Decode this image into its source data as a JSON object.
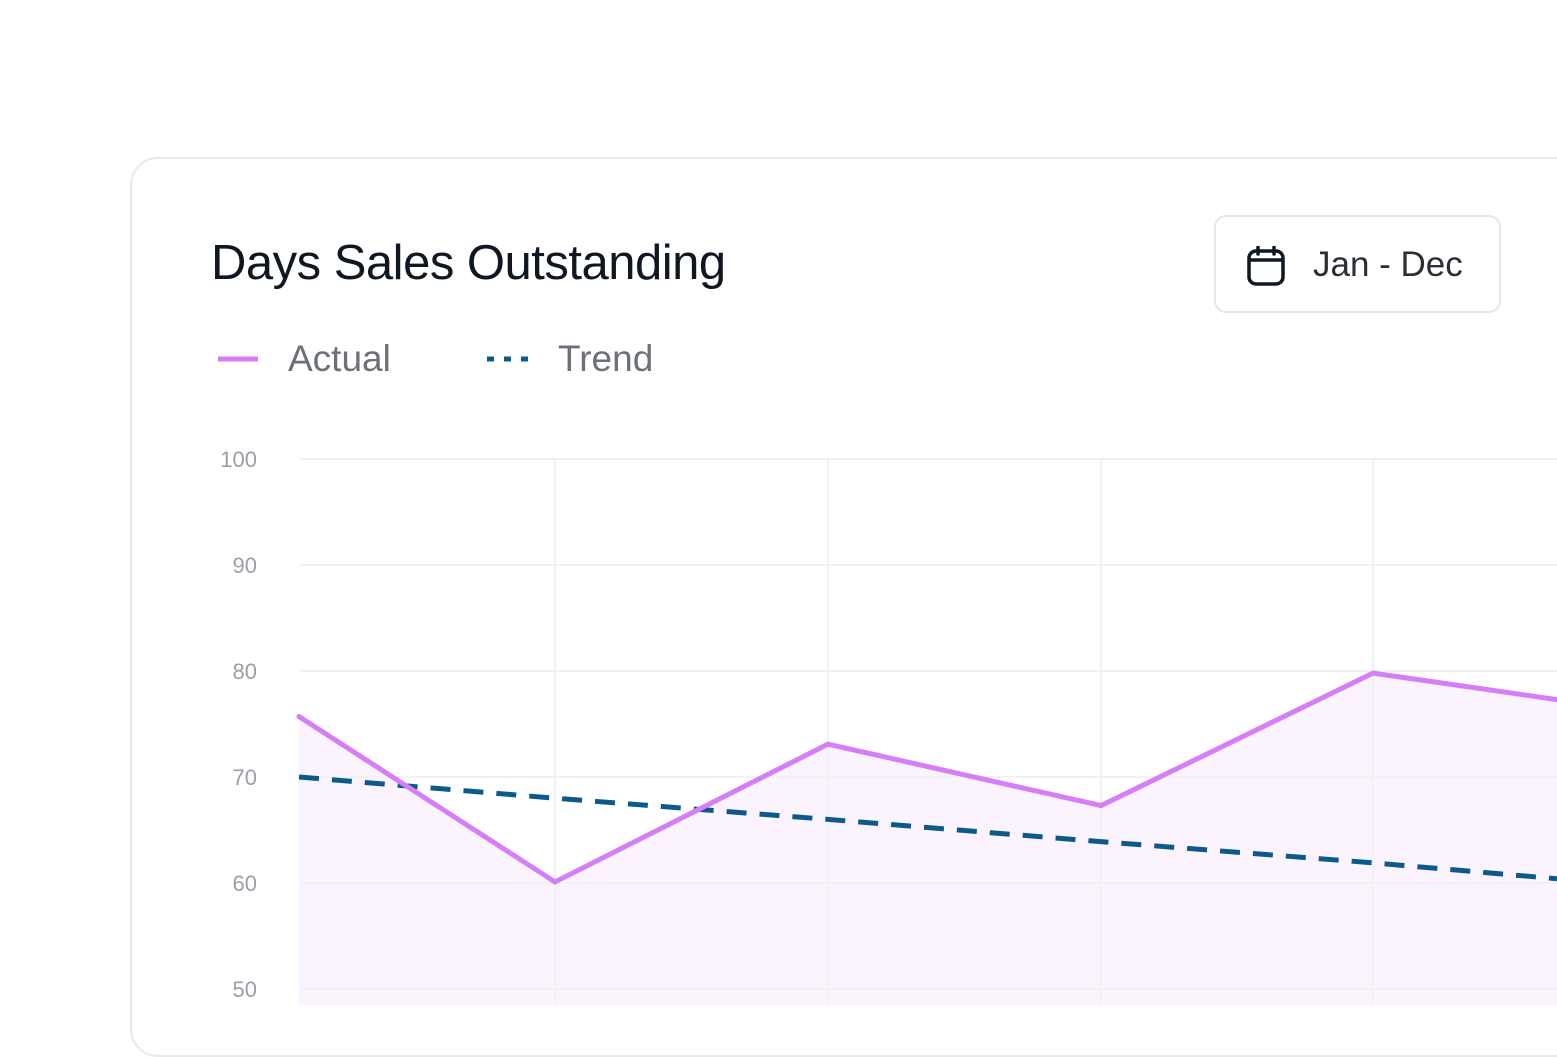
{
  "header": {
    "title": "Days Sales Outstanding",
    "date_range_label": "Jan - Dec",
    "date_icon": "calendar-icon"
  },
  "legend": [
    {
      "label": "Actual",
      "color": "#d67ef5",
      "style": "solid"
    },
    {
      "label": "Trend",
      "color": "#0b5a8a",
      "style": "dotted"
    }
  ],
  "colors": {
    "actual": "#d67ef5",
    "actual_fill": "#fbf4fe",
    "trend": "#0b5a8a",
    "grid": "#f1f2f4",
    "card_border": "#e8e9eb"
  },
  "chart_data": {
    "type": "line",
    "title": "Days Sales Outstanding",
    "xlabel": "",
    "ylabel": "",
    "ylim": [
      50,
      100
    ],
    "yticks": [
      100,
      90,
      80,
      70,
      60,
      50
    ],
    "grid": true,
    "legend_position": "top-left",
    "series": [
      {
        "name": "Actual",
        "values": [
          75.7,
          60.1,
          73.1,
          67.3,
          79.8,
          77.3
        ],
        "style": "solid",
        "area_fill": true
      },
      {
        "name": "Trend",
        "values": [
          70.0,
          68.0,
          66.0,
          63.9,
          61.9,
          60.4
        ],
        "style": "dotted"
      }
    ]
  }
}
